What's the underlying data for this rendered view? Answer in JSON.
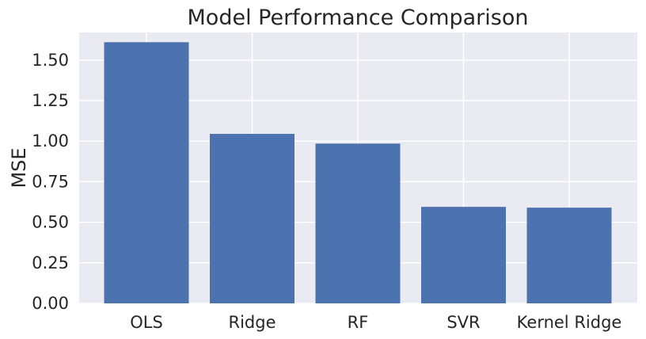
{
  "chart_data": {
    "type": "bar",
    "title": "Model Performance Comparison",
    "xlabel": "",
    "ylabel": "MSE",
    "categories": [
      "OLS",
      "Ridge",
      "RF",
      "SVR",
      "Kernel Ridge"
    ],
    "values": [
      1.61,
      1.045,
      0.985,
      0.595,
      0.59
    ],
    "ylim": [
      0,
      1.67
    ],
    "yticks": [
      0.0,
      0.25,
      0.5,
      0.75,
      1.0,
      1.25,
      1.5
    ],
    "ytick_labels": [
      "0.00",
      "0.25",
      "0.50",
      "0.75",
      "1.00",
      "1.25",
      "1.50"
    ],
    "grid": true,
    "colors": {
      "bar": "#4c72b0",
      "plot_background": "#eaeaf2",
      "grid": "#ffffff",
      "text": "#262626"
    }
  }
}
